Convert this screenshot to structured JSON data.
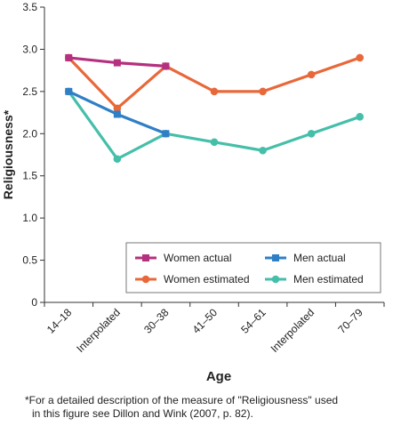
{
  "chart_data": {
    "type": "line",
    "title": "",
    "xlabel": "Age",
    "ylabel": "Religiousness*",
    "ylim": [
      0,
      3.5
    ],
    "yticks": [
      "0",
      "0.5",
      "1.0",
      "1.5",
      "2.0",
      "2.5",
      "3.0",
      "3.5"
    ],
    "categories": [
      "14–18",
      "Interpolated",
      "30–38",
      "41–50",
      "54–61",
      "Interpolated",
      "70–79"
    ],
    "grid": false,
    "legend_position": "bottom-right, inside",
    "series": [
      {
        "name": "Women actual",
        "color": "#b5307f",
        "marker": "square",
        "values": [
          2.9,
          2.84,
          2.8,
          null,
          null,
          null,
          null
        ]
      },
      {
        "name": "Men actual",
        "color": "#2f7fc6",
        "marker": "square",
        "values": [
          2.5,
          2.23,
          2.0,
          null,
          null,
          null,
          null
        ]
      },
      {
        "name": "Women estimated",
        "color": "#e8683a",
        "marker": "circle",
        "values": [
          2.9,
          2.3,
          2.8,
          2.5,
          2.5,
          2.7,
          2.9
        ]
      },
      {
        "name": "Men estimated",
        "color": "#45bfa9",
        "marker": "circle",
        "values": [
          2.5,
          1.7,
          2.0,
          1.9,
          1.8,
          2.0,
          2.2
        ]
      }
    ],
    "legend_order": [
      "Women actual",
      "Men actual",
      "Women estimated",
      "Men estimated"
    ]
  },
  "footnote": {
    "line1": "*For a detailed description of the measure of \"Religiousness\" used",
    "line2": "in this figure see Dillon and Wink (2007, p. 82)."
  }
}
